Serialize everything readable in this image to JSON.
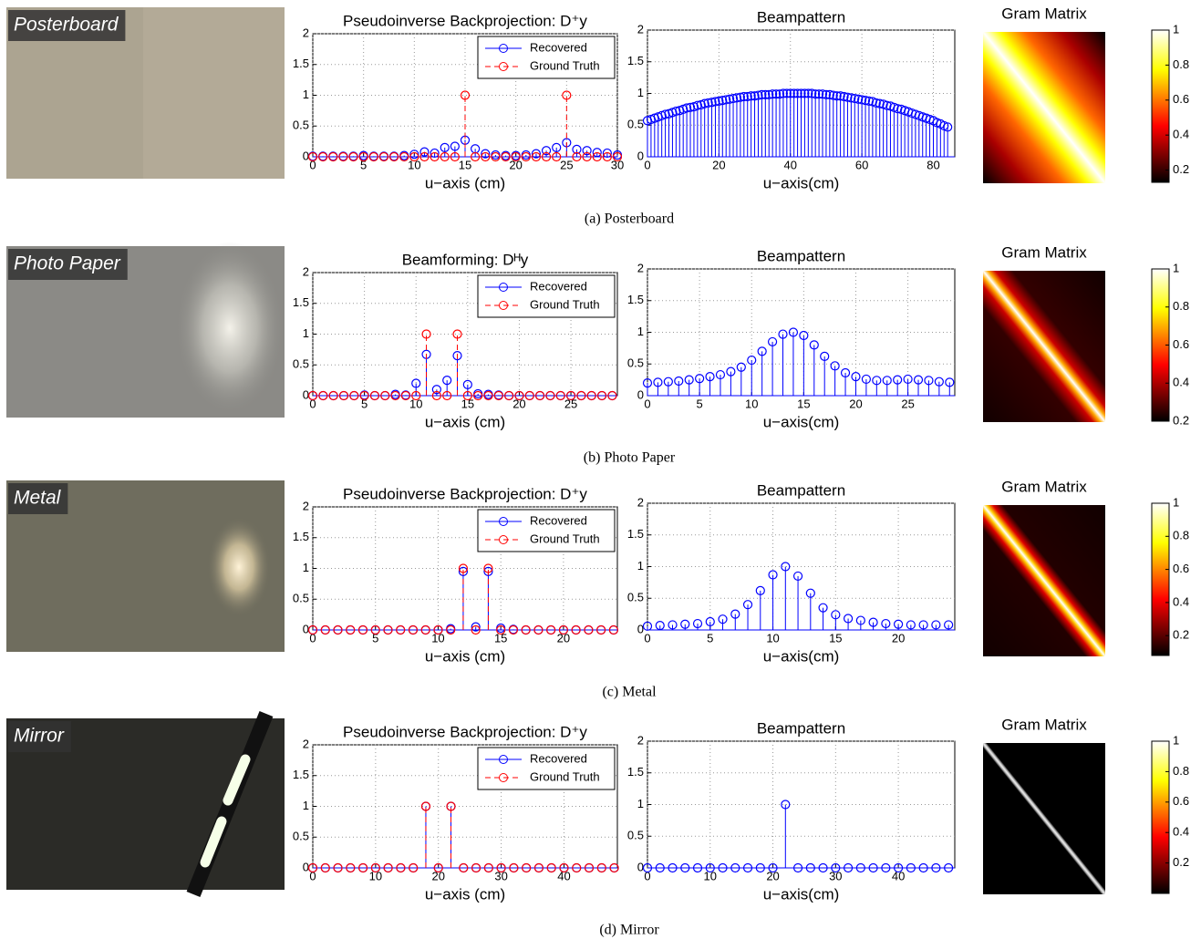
{
  "chart_data": [
    {
      "type": "stem",
      "title": "Pseudoinverse Backprojection: D⁺y",
      "xlabel": "u−axis (cm)",
      "x": [
        0,
        1,
        2,
        3,
        4,
        5,
        6,
        7,
        8,
        9,
        10,
        11,
        12,
        13,
        14,
        15,
        16,
        17,
        18,
        19,
        20,
        21,
        22,
        23,
        24,
        25,
        26,
        27,
        28,
        29,
        30
      ],
      "series": [
        {
          "name": "Recovered",
          "color": "#0000ff",
          "line_style": "solid",
          "values": [
            0.01,
            0.01,
            0.01,
            0.01,
            0.01,
            0.02,
            0.01,
            0.01,
            0.01,
            0.02,
            0.04,
            0.08,
            0.06,
            0.15,
            0.17,
            0.27,
            0.13,
            0.05,
            0.03,
            0.02,
            0.02,
            0.03,
            0.05,
            0.1,
            0.15,
            0.23,
            0.12,
            0.1,
            0.07,
            0.06,
            0.03
          ]
        },
        {
          "name": "Ground Truth",
          "color": "#ff0000",
          "line_style": "dashed",
          "values": [
            0,
            0,
            0,
            0,
            0,
            0,
            0,
            0,
            0,
            0,
            0,
            0,
            0,
            0,
            0,
            1,
            0,
            0,
            0,
            0,
            0,
            0,
            0,
            0,
            0,
            1,
            0,
            0,
            0,
            0,
            0
          ]
        }
      ],
      "xlim": [
        0,
        30
      ],
      "ylim": [
        0,
        2
      ],
      "xticks": [
        0,
        5,
        10,
        15,
        20,
        25,
        30
      ],
      "yticks": [
        0,
        0.5,
        1,
        1.5,
        2
      ],
      "grid": true,
      "legend": "upper right"
    },
    {
      "type": "stem",
      "title": "Beampattern",
      "xlabel": "u−axis(cm)",
      "x": [
        0,
        1,
        2,
        3,
        4,
        5,
        6,
        7,
        8,
        9,
        10,
        11,
        12,
        13,
        14,
        15,
        16,
        17,
        18,
        19,
        20,
        21,
        22,
        23,
        24,
        25,
        26,
        27,
        28,
        29,
        30,
        31,
        32,
        33,
        34,
        35,
        36,
        37,
        38,
        39,
        40,
        41,
        42,
        43,
        44,
        45,
        46,
        47,
        48,
        49,
        50,
        51,
        52,
        53,
        54,
        55,
        56,
        57,
        58,
        59,
        60,
        61,
        62,
        63,
        64,
        65,
        66,
        67,
        68,
        69,
        70,
        71,
        72,
        73,
        74,
        75,
        76,
        77,
        78,
        79,
        80,
        81,
        82,
        83,
        84
      ],
      "series": [
        {
          "color": "#0000ff",
          "line_style": "solid",
          "values": [
            0.57,
            0.59,
            0.61,
            0.63,
            0.65,
            0.67,
            0.68,
            0.7,
            0.72,
            0.73,
            0.75,
            0.77,
            0.78,
            0.79,
            0.81,
            0.82,
            0.84,
            0.85,
            0.86,
            0.87,
            0.88,
            0.89,
            0.9,
            0.91,
            0.92,
            0.93,
            0.94,
            0.95,
            0.95,
            0.96,
            0.96,
            0.97,
            0.98,
            0.98,
            0.98,
            0.99,
            0.99,
            0.99,
            1,
            1,
            1,
            1,
            1,
            1,
            1,
            1,
            1,
            0.99,
            0.99,
            0.99,
            0.98,
            0.98,
            0.97,
            0.96,
            0.96,
            0.95,
            0.94,
            0.93,
            0.92,
            0.91,
            0.9,
            0.89,
            0.88,
            0.87,
            0.85,
            0.84,
            0.83,
            0.81,
            0.8,
            0.78,
            0.76,
            0.75,
            0.73,
            0.71,
            0.69,
            0.67,
            0.65,
            0.63,
            0.61,
            0.59,
            0.57,
            0.54,
            0.52,
            0.49,
            0.47
          ]
        }
      ],
      "xlim": [
        0,
        86
      ],
      "ylim": [
        0,
        2
      ],
      "xticks": [
        0,
        20,
        40,
        60,
        80
      ],
      "yticks": [
        0,
        0.5,
        1,
        1.5,
        2
      ],
      "grid": true
    },
    {
      "type": "heatmap",
      "title": "Gram Matrix",
      "colormap": "hot",
      "clim": [
        0.13,
        1
      ],
      "cticks": [
        0.2,
        0.4,
        0.6,
        0.8,
        1
      ]
    },
    {
      "type": "stem",
      "title": "Beamforming: Dᴴy",
      "xlabel": "u−axis (cm)",
      "x": [
        0,
        1,
        2,
        3,
        4,
        5,
        6,
        7,
        8,
        9,
        10,
        11,
        12,
        13,
        14,
        15,
        16,
        17,
        18,
        19,
        20,
        21,
        22,
        23,
        24,
        25,
        26,
        27,
        28,
        29
      ],
      "series": [
        {
          "name": "Recovered",
          "color": "#0000ff",
          "line_style": "solid",
          "values": [
            0,
            0,
            0,
            0,
            0,
            0.01,
            0,
            0,
            0.02,
            0.01,
            0.2,
            0.67,
            0.1,
            0.25,
            0.65,
            0.18,
            0.03,
            0.02,
            0.01,
            0,
            0,
            0,
            0,
            0,
            0,
            0,
            0,
            0,
            0,
            0
          ]
        },
        {
          "name": "Ground Truth",
          "color": "#ff0000",
          "line_style": "dashed",
          "values": [
            0,
            0,
            0,
            0,
            0,
            0,
            0,
            0,
            0,
            0,
            0,
            1,
            0,
            0,
            1,
            0,
            0,
            0,
            0,
            0,
            0,
            0,
            0,
            0,
            0,
            0,
            0,
            0,
            0,
            0
          ]
        }
      ],
      "xlim": [
        0,
        29.5
      ],
      "ylim": [
        0,
        2
      ],
      "xticks": [
        0,
        5,
        10,
        15,
        20,
        25
      ],
      "yticks": [
        0,
        0.5,
        1,
        1.5,
        2
      ],
      "grid": true,
      "legend": "upper right"
    },
    {
      "type": "stem",
      "title": "Beampattern",
      "xlabel": "u−axis(cm)",
      "x": [
        0,
        1,
        2,
        3,
        4,
        5,
        6,
        7,
        8,
        9,
        10,
        11,
        12,
        13,
        14,
        15,
        16,
        17,
        18,
        19,
        20,
        21,
        22,
        23,
        24,
        25,
        26,
        27,
        28,
        29
      ],
      "series": [
        {
          "color": "#0000ff",
          "line_style": "solid",
          "values": [
            0.2,
            0.21,
            0.22,
            0.23,
            0.25,
            0.27,
            0.3,
            0.33,
            0.38,
            0.45,
            0.56,
            0.7,
            0.85,
            0.97,
            1,
            0.95,
            0.8,
            0.62,
            0.47,
            0.36,
            0.3,
            0.26,
            0.24,
            0.24,
            0.25,
            0.26,
            0.25,
            0.24,
            0.22,
            0.21
          ]
        }
      ],
      "xlim": [
        0,
        29.5
      ],
      "ylim": [
        0,
        2
      ],
      "xticks": [
        0,
        5,
        10,
        15,
        20,
        25
      ],
      "yticks": [
        0,
        0.5,
        1,
        1.5,
        2
      ],
      "grid": true
    },
    {
      "type": "heatmap",
      "title": "Gram Matrix",
      "colormap": "hot",
      "clim": [
        0.2,
        1
      ],
      "cticks": [
        0.2,
        0.4,
        0.6,
        0.8,
        1
      ]
    },
    {
      "type": "stem",
      "title": "Pseudoinverse Backprojection: D⁺y",
      "xlabel": "u−axis (cm)",
      "x": [
        0,
        1,
        2,
        3,
        4,
        5,
        6,
        7,
        8,
        9,
        10,
        11,
        12,
        13,
        14,
        15,
        16,
        17,
        18,
        19,
        20,
        21,
        22,
        23,
        24
      ],
      "series": [
        {
          "name": "Recovered",
          "color": "#0000ff",
          "line_style": "solid",
          "values": [
            0,
            0,
            0,
            0,
            0,
            0,
            0,
            0,
            0,
            0,
            0,
            0.02,
            0.95,
            0.05,
            0.95,
            0.03,
            0.01,
            0,
            0,
            0,
            0,
            0,
            0,
            0,
            0
          ]
        },
        {
          "name": "Ground Truth",
          "color": "#ff0000",
          "line_style": "dashed",
          "values": [
            0,
            0,
            0,
            0,
            0,
            0,
            0,
            0,
            0,
            0,
            0,
            0,
            1,
            0,
            1,
            0,
            0,
            0,
            0,
            0,
            0,
            0,
            0,
            0,
            0
          ]
        }
      ],
      "xlim": [
        0,
        24.3
      ],
      "ylim": [
        0,
        2
      ],
      "xticks": [
        0,
        5,
        10,
        15,
        20
      ],
      "yticks": [
        0,
        0.5,
        1,
        1.5,
        2
      ],
      "grid": true,
      "legend": "upper right"
    },
    {
      "type": "stem",
      "title": "Beampattern",
      "xlabel": "u−axis(cm)",
      "x": [
        0,
        1,
        2,
        3,
        4,
        5,
        6,
        7,
        8,
        9,
        10,
        11,
        12,
        13,
        14,
        15,
        16,
        17,
        18,
        19,
        20,
        21,
        22,
        23,
        24
      ],
      "series": [
        {
          "color": "#0000ff",
          "line_style": "solid",
          "values": [
            0.06,
            0.07,
            0.08,
            0.09,
            0.1,
            0.13,
            0.17,
            0.25,
            0.4,
            0.62,
            0.87,
            1,
            0.85,
            0.58,
            0.35,
            0.24,
            0.18,
            0.15,
            0.12,
            0.1,
            0.09,
            0.08,
            0.08,
            0.08,
            0.08
          ]
        }
      ],
      "xlim": [
        0,
        24.5
      ],
      "ylim": [
        0,
        2
      ],
      "xticks": [
        0,
        5,
        10,
        15,
        20
      ],
      "yticks": [
        0,
        0.5,
        1,
        1.5,
        2
      ],
      "grid": true
    },
    {
      "type": "heatmap",
      "title": "Gram Matrix",
      "colormap": "hot",
      "clim": [
        0.08,
        1
      ],
      "cticks": [
        0.2,
        0.4,
        0.6,
        0.8,
        1
      ]
    },
    {
      "type": "stem",
      "title": "Pseudoinverse Backprojection: D⁺y",
      "xlabel": "u−axis (cm)",
      "x": [
        0,
        2,
        4,
        6,
        8,
        10,
        12,
        14,
        16,
        18,
        20,
        22,
        24,
        26,
        28,
        30,
        32,
        34,
        36,
        38,
        40,
        42,
        44,
        46,
        48
      ],
      "series": [
        {
          "name": "Recovered",
          "color": "#0000ff",
          "line_style": "solid",
          "values": [
            0,
            0,
            0,
            0,
            0,
            0,
            0,
            0,
            0,
            1,
            0,
            1,
            0,
            0,
            0,
            0,
            0,
            0,
            0,
            0,
            0,
            0,
            0,
            0,
            0
          ]
        },
        {
          "name": "Ground Truth",
          "color": "#ff0000",
          "line_style": "dashed",
          "values": [
            0,
            0,
            0,
            0,
            0,
            0,
            0,
            0,
            0,
            1,
            0,
            1,
            0,
            0,
            0,
            0,
            0,
            0,
            0,
            0,
            0,
            0,
            0,
            0,
            0
          ]
        }
      ],
      "xlim": [
        0,
        48.5
      ],
      "ylim": [
        0,
        2
      ],
      "xticks": [
        0,
        10,
        20,
        30,
        40
      ],
      "yticks": [
        0,
        0.5,
        1,
        1.5,
        2
      ],
      "grid": true,
      "legend": "upper right"
    },
    {
      "type": "stem",
      "title": "Beampattern",
      "xlabel": "u−axis(cm)",
      "x": [
        0,
        2,
        4,
        6,
        8,
        10,
        12,
        14,
        16,
        18,
        20,
        22,
        24,
        26,
        28,
        30,
        32,
        34,
        36,
        38,
        40,
        42,
        44,
        46,
        48
      ],
      "series": [
        {
          "color": "#0000ff",
          "line_style": "solid",
          "values": [
            0,
            0,
            0,
            0,
            0,
            0,
            0,
            0,
            0,
            0,
            0,
            1,
            0,
            0,
            0,
            0,
            0,
            0,
            0,
            0,
            0,
            0,
            0,
            0,
            0
          ]
        }
      ],
      "xlim": [
        0,
        49
      ],
      "ylim": [
        0,
        2
      ],
      "xticks": [
        0,
        10,
        20,
        30,
        40
      ],
      "yticks": [
        0,
        0.5,
        1,
        1.5,
        2
      ],
      "grid": true
    },
    {
      "type": "heatmap",
      "title": "Gram Matrix",
      "colormap": "hot",
      "clim": [
        0,
        1
      ],
      "cticks": [
        0.2,
        0.4,
        0.6,
        0.8,
        1
      ]
    }
  ],
  "photo_labels": [
    "Posterboard",
    "Photo Paper",
    "Metal",
    "Mirror"
  ],
  "captions": [
    "(a) Posterboard",
    "(b) Photo Paper",
    "(c) Metal",
    "(d) Mirror"
  ]
}
